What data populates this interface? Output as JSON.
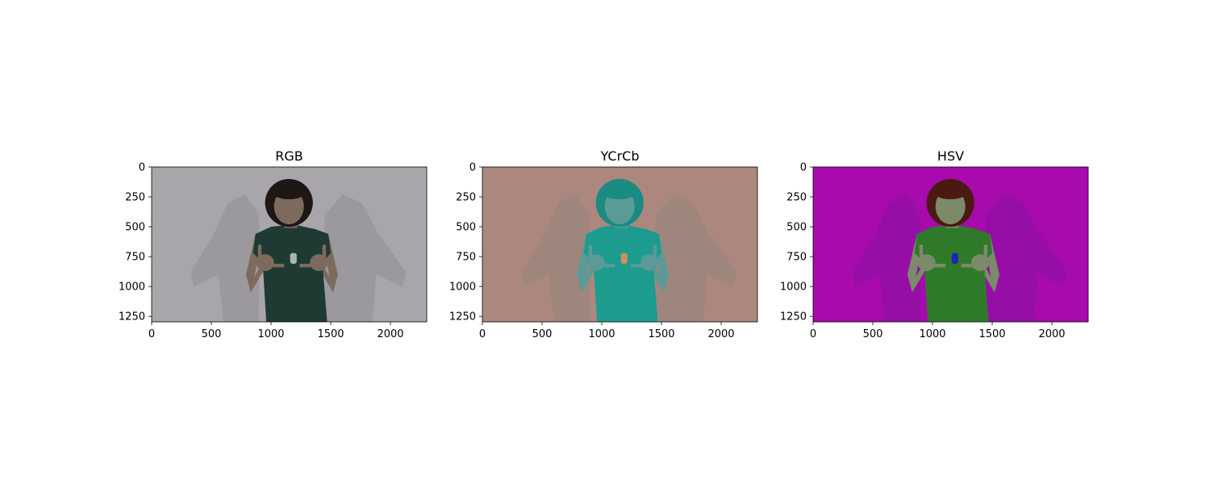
{
  "chart_data": [
    {
      "type": "image",
      "title": "RGB",
      "image_size": [
        2304,
        1296
      ],
      "xlim": [
        0,
        2304
      ],
      "ylim": [
        1296,
        0
      ],
      "xticks": [
        0,
        500,
        1000,
        1500,
        2000
      ],
      "yticks": [
        0,
        250,
        500,
        750,
        1000,
        1250
      ],
      "colors": {
        "background": "#a9a6ab",
        "shadow": "#97949a",
        "skin": "#7d6a5e",
        "hair": "#1f1716",
        "shirt": "#1e3a33",
        "logo": "#a8b8ae"
      }
    },
    {
      "type": "image",
      "title": "YCrCb",
      "image_size": [
        2304,
        1296
      ],
      "xlim": [
        0,
        2304
      ],
      "ylim": [
        1296,
        0
      ],
      "xticks": [
        0,
        500,
        1000,
        1500,
        2000
      ],
      "yticks": [
        0,
        250,
        500,
        750,
        1000,
        1250
      ],
      "colors": {
        "background": "#ab877e",
        "shadow": "#9a857d",
        "skin": "#5a9a97",
        "hair": "#1a8b82",
        "shirt": "#1d9b8e",
        "logo": "#d28e5e"
      }
    },
    {
      "type": "image",
      "title": "HSV",
      "image_size": [
        2304,
        1296
      ],
      "xlim": [
        0,
        2304
      ],
      "ylim": [
        1296,
        0
      ],
      "xticks": [
        0,
        500,
        1000,
        1500,
        2000
      ],
      "yticks": [
        0,
        250,
        500,
        750,
        1000,
        1250
      ],
      "colors": {
        "background": "#a70aad",
        "shadow": "#9210a6",
        "skin": "#7c8a6a",
        "hair": "#4a1a12",
        "shirt": "#2f7a2a",
        "logo": "#2222bb"
      }
    }
  ]
}
